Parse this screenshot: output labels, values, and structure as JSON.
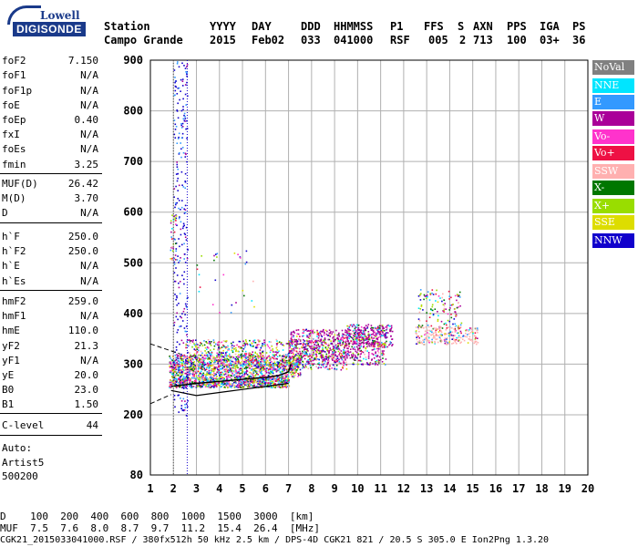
{
  "logo": {
    "line1": "Lowell",
    "line2": "DIGISONDE"
  },
  "header": {
    "labels": [
      "Station",
      "YYYY",
      "DAY",
      "DDD",
      "HHMMSS",
      "P1",
      "FFS",
      "S",
      "AXN",
      "PPS",
      "IGA",
      "PS"
    ],
    "values": [
      "Campo Grande",
      "2015",
      "Feb02",
      "033",
      "041000",
      "RSF",
      "005",
      "2",
      "713",
      "100",
      "03+",
      "36"
    ]
  },
  "params": [
    {
      "key": "foF2",
      "value": "7.150"
    },
    {
      "key": "foF1",
      "value": "N/A"
    },
    {
      "key": "foF1p",
      "value": "N/A"
    },
    {
      "key": "foE",
      "value": "N/A"
    },
    {
      "key": "foEp",
      "value": "0.40"
    },
    {
      "key": "fxI",
      "value": "N/A"
    },
    {
      "key": "foEs",
      "value": "N/A"
    },
    {
      "key": "fmin",
      "value": "3.25"
    },
    {
      "key": "MUF(D)",
      "value": "26.42"
    },
    {
      "key": "M(D)",
      "value": "3.70"
    },
    {
      "key": "D",
      "value": "N/A"
    },
    {
      "key": "h`F",
      "value": "250.0"
    },
    {
      "key": "h`F2",
      "value": "250.0"
    },
    {
      "key": "h`E",
      "value": "N/A"
    },
    {
      "key": "h`Es",
      "value": "N/A"
    },
    {
      "key": "hmF2",
      "value": "259.0"
    },
    {
      "key": "hmF1",
      "value": "N/A"
    },
    {
      "key": "hmE",
      "value": "110.0"
    },
    {
      "key": "yF2",
      "value": "21.3"
    },
    {
      "key": "yF1",
      "value": "N/A"
    },
    {
      "key": "yE",
      "value": "20.0"
    },
    {
      "key": "B0",
      "value": "23.0"
    },
    {
      "key": "B1",
      "value": "1.50"
    },
    {
      "key": "C-level",
      "value": "44"
    }
  ],
  "auto": [
    "Auto:",
    "Artist5",
    "500200"
  ],
  "legend": [
    {
      "label": "NoVal",
      "color": "#808080"
    },
    {
      "label": "NNE",
      "color": "#00e5ff"
    },
    {
      "label": "E",
      "color": "#3399ff"
    },
    {
      "label": "W",
      "color": "#aa0099"
    },
    {
      "label": "Vo-",
      "color": "#ff33cc"
    },
    {
      "label": "Vo+",
      "color": "#ee1144"
    },
    {
      "label": "SSW",
      "color": "#ffb0b0"
    },
    {
      "label": "X-",
      "color": "#007700"
    },
    {
      "label": "X+",
      "color": "#99dd00"
    },
    {
      "label": "SSE",
      "color": "#dddd00"
    },
    {
      "label": "NNW",
      "color": "#1100cc"
    }
  ],
  "bottom": {
    "d_row": "D    100  200  400  600  800  1000  1500  3000  [km]",
    "muf_row": "MUF  7.5  7.6  8.0  8.7  9.7  11.2  15.4  26.4  [MHz]",
    "footer": "CGK21_2015033041000.RSF / 380fx512h 50 kHz 2.5 km / DPS-4D CGK21 821 / 20.5 S 305.0 E Ion2Png 1.3.20"
  },
  "chart_data": {
    "type": "scatter",
    "xlim": [
      1,
      20
    ],
    "ylim": [
      80,
      900
    ],
    "x_ticks": [
      1,
      2,
      3,
      4,
      5,
      6,
      7,
      8,
      9,
      10,
      11,
      12,
      13,
      14,
      15,
      16,
      17,
      18,
      19,
      20
    ],
    "y_ticks": [
      80,
      200,
      300,
      400,
      500,
      600,
      700,
      800,
      900
    ],
    "grid": true,
    "trace_curve": [
      [
        1.9,
        256
      ],
      [
        3,
        262
      ],
      [
        4,
        266
      ],
      [
        5,
        270
      ],
      [
        6,
        274
      ],
      [
        6.6,
        278
      ],
      [
        7,
        285
      ],
      [
        7.1,
        300
      ]
    ],
    "trace_lower": [
      [
        1.9,
        248
      ],
      [
        3,
        238
      ],
      [
        4,
        244
      ],
      [
        5,
        250
      ],
      [
        6,
        256
      ],
      [
        7,
        262
      ]
    ],
    "dashed_upper": [
      [
        1,
        340
      ],
      [
        2.3,
        320
      ]
    ],
    "dashed_lower": [
      [
        1,
        222
      ],
      [
        1.9,
        240
      ]
    ],
    "clusters": [
      {
        "xr": [
          1.8,
          7.0
        ],
        "yr": [
          255,
          275
        ],
        "n": 900
      },
      {
        "xr": [
          1.8,
          7.5
        ],
        "yr": [
          275,
          320
        ],
        "n": 1100
      },
      {
        "xr": [
          2.5,
          9.5
        ],
        "yr": [
          290,
          350
        ],
        "n": 800
      },
      {
        "xr": [
          7.0,
          11.2
        ],
        "yr": [
          300,
          370
        ],
        "n": 700
      },
      {
        "xr": [
          9.5,
          11.5
        ],
        "yr": [
          335,
          380
        ],
        "n": 250
      },
      {
        "xr": [
          12.5,
          15.2
        ],
        "yr": [
          340,
          375
        ],
        "n": 250
      },
      {
        "xr": [
          12.6,
          14.5
        ],
        "yr": [
          375,
          450
        ],
        "n": 120
      },
      {
        "xr": [
          2.0,
          2.6
        ],
        "yr": [
          200,
          900
        ],
        "n": 260
      },
      {
        "xr": [
          1.8,
          2.1
        ],
        "yr": [
          500,
          600
        ],
        "n": 30
      },
      {
        "xr": [
          3.0,
          5.5
        ],
        "yr": [
          400,
          530
        ],
        "n": 30
      }
    ]
  }
}
